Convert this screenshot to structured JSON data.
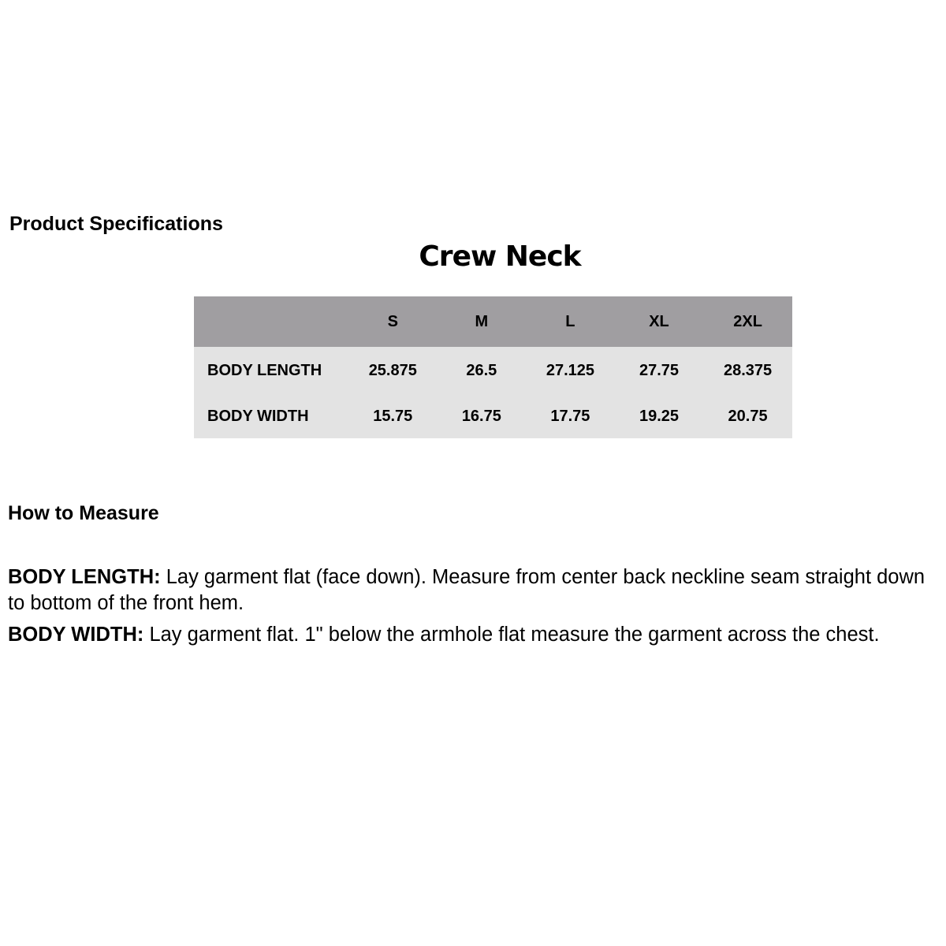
{
  "spec_heading": "Product Specifications",
  "product_title": "Crew Neck",
  "table": {
    "headers": [
      "",
      "S",
      "M",
      "L",
      "XL",
      "2XL"
    ],
    "rows": [
      {
        "label": "BODY LENGTH",
        "values": [
          "25.875",
          "26.5",
          "27.125",
          "27.75",
          "28.375"
        ]
      },
      {
        "label": "BODY WIDTH",
        "values": [
          "15.75",
          "16.75",
          "17.75",
          "19.25",
          "20.75"
        ]
      }
    ],
    "header_color": "#a09ea1",
    "body_color": "#e3e3e3"
  },
  "measure_heading": "How to Measure",
  "instructions": [
    {
      "term": "BODY LENGTH:",
      "text": " Lay garment flat (face down). Measure from center back neckline seam straight down to bottom of the front hem."
    },
    {
      "term": "BODY WIDTH:",
      "text": " Lay garment flat. 1\" below the armhole flat measure the garment across the chest."
    }
  ]
}
